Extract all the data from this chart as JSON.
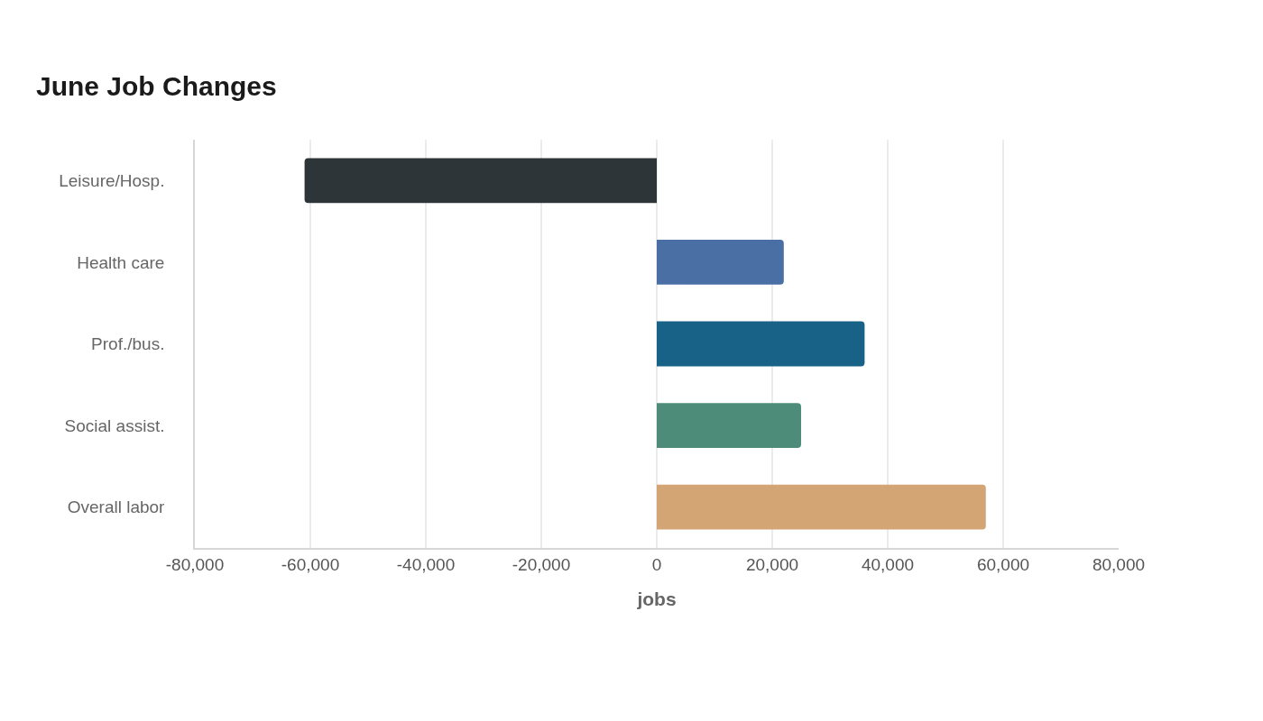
{
  "chart_data": {
    "type": "bar",
    "orientation": "horizontal",
    "title": "June Job Changes",
    "xlabel": "jobs",
    "categories": [
      "Leisure/Hosp.",
      "Health care",
      "Prof./bus.",
      "Social assist.",
      "Overall labor"
    ],
    "values": [
      -61000,
      22000,
      36000,
      25000,
      57000
    ],
    "colors": [
      "#2e3538",
      "#4a6fa5",
      "#186187",
      "#4e8c7a",
      "#d4a574"
    ],
    "xlim": [
      -80000,
      80000
    ],
    "xticks": [
      {
        "value": -80000,
        "label": "-80,000"
      },
      {
        "value": -60000,
        "label": "-60,000"
      },
      {
        "value": -40000,
        "label": "-40,000"
      },
      {
        "value": -20000,
        "label": "-20,000"
      },
      0,
      {
        "value": 20000,
        "label": "20,000"
      },
      {
        "value": 40000,
        "label": "40,000"
      },
      {
        "value": 60000,
        "label": "60,000"
      },
      {
        "value": 80000,
        "label": "80,000"
      }
    ],
    "grid": "x"
  }
}
